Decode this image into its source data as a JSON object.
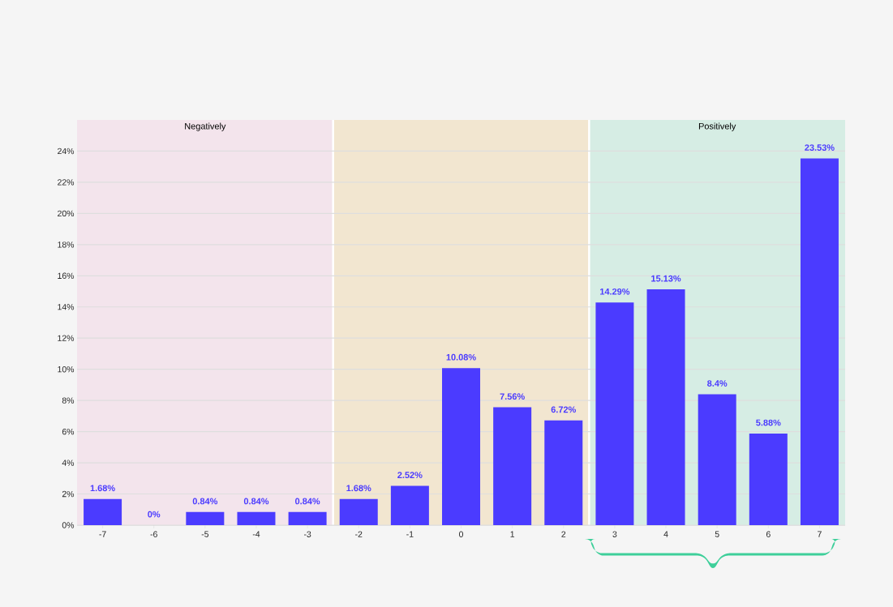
{
  "chart_data": {
    "type": "bar",
    "categories": [
      "-7",
      "-6",
      "-5",
      "-4",
      "-3",
      "-2",
      "-1",
      "0",
      "1",
      "2",
      "3",
      "4",
      "5",
      "6",
      "7"
    ],
    "values": [
      1.68,
      0,
      0.84,
      0.84,
      0.84,
      1.68,
      2.52,
      10.08,
      7.56,
      6.72,
      14.29,
      15.13,
      8.4,
      5.88,
      23.53
    ],
    "value_labels": [
      "1.68%",
      "0%",
      "0.84%",
      "0.84%",
      "0.84%",
      "1.68%",
      "2.52%",
      "10.08%",
      "7.56%",
      "6.72%",
      "14.29%",
      "15.13%",
      "8.4%",
      "5.88%",
      "23.53%"
    ],
    "color": "#4b3bff",
    "ylim": [
      0,
      26
    ],
    "yticks": [
      {
        "value": 0,
        "label": "0%"
      },
      {
        "value": 2,
        "label": "2%"
      },
      {
        "value": 4,
        "label": "4%"
      },
      {
        "value": 6,
        "label": "6%"
      },
      {
        "value": 8,
        "label": "8%"
      },
      {
        "value": 10,
        "label": "10%"
      },
      {
        "value": 12,
        "label": "12%"
      },
      {
        "value": 14,
        "label": "14%"
      },
      {
        "value": 16,
        "label": "16%"
      },
      {
        "value": 18,
        "label": "18%"
      },
      {
        "value": 20,
        "label": "20%"
      },
      {
        "value": 22,
        "label": "22%"
      },
      {
        "value": 24,
        "label": "24%"
      }
    ],
    "grid": "y",
    "bands": [
      {
        "axis": "x",
        "from": "-7",
        "to": "-3",
        "label": "Negatively",
        "color": "#f3e4ec"
      },
      {
        "axis": "x",
        "from": "-2",
        "to": "2",
        "color": "#f2e6d0"
      },
      {
        "axis": "x",
        "from": "3",
        "to": "7",
        "label": "Positively",
        "color": "#d6ede4"
      }
    ]
  }
}
